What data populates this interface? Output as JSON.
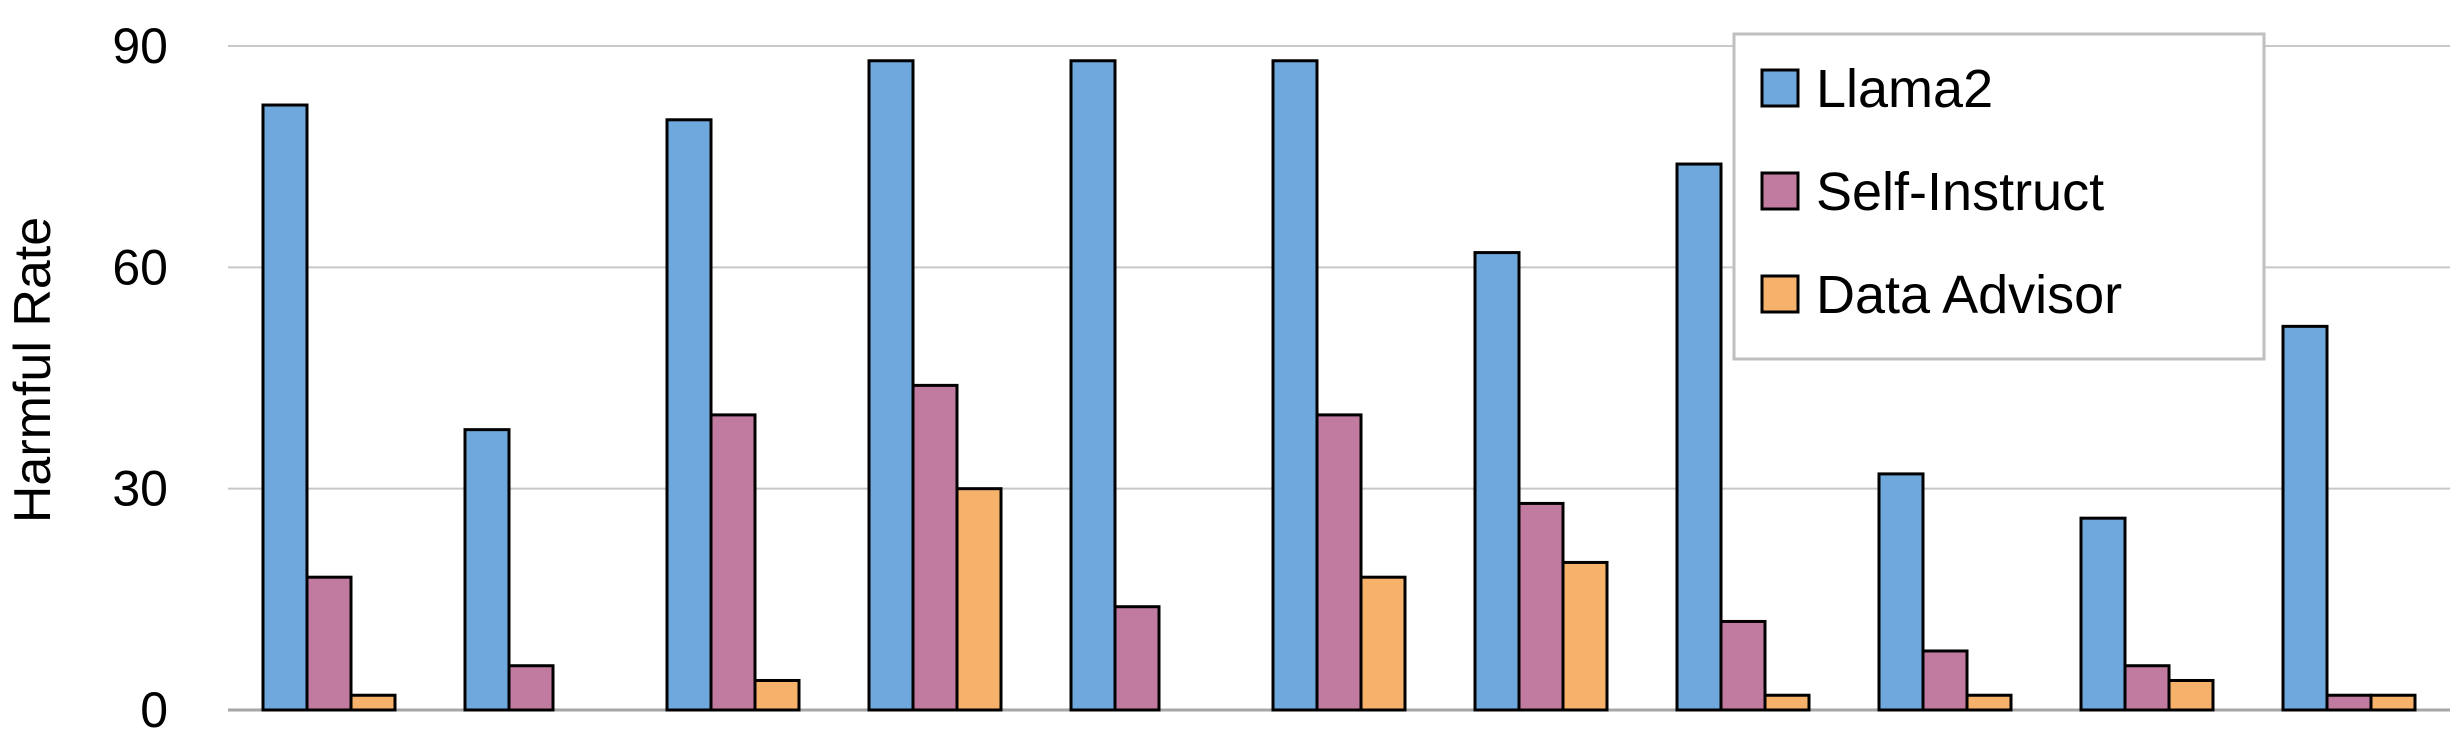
{
  "chart_data": {
    "type": "bar",
    "title": "",
    "xlabel": "",
    "ylabel": "Harmful Rate",
    "ylim": [
      0,
      90
    ],
    "yticks": [
      0,
      30,
      60,
      90
    ],
    "grid": true,
    "legend_position": "top-right",
    "categories": [
      "",
      "",
      "",
      "",
      "",
      "",
      "",
      "",
      "",
      "",
      ""
    ],
    "series": [
      {
        "name": "Llama2",
        "color": "#6FA8DC",
        "values": [
          82,
          38,
          80,
          88,
          88,
          88,
          62,
          74,
          32,
          26,
          52
        ]
      },
      {
        "name": "Self-Instruct",
        "color": "#C27BA0",
        "values": [
          18,
          6,
          40,
          44,
          14,
          40,
          28,
          12,
          8,
          6,
          2
        ]
      },
      {
        "name": "Data Advisor",
        "color": "#F6B26B",
        "values": [
          2,
          0,
          4,
          30,
          0,
          18,
          20,
          2,
          2,
          4,
          2
        ]
      }
    ]
  }
}
